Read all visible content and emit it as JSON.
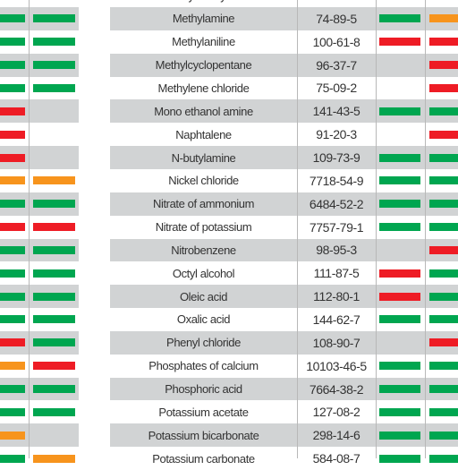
{
  "left_table": {
    "rows": [
      {
        "ratings": [
          null,
          null
        ]
      },
      {
        "ratings": [
          "#00a650",
          "#00a650"
        ]
      },
      {
        "ratings": [
          "#00a650",
          "#00a650"
        ]
      },
      {
        "ratings": [
          "#00a650",
          "#00a650"
        ]
      },
      {
        "ratings": [
          "#00a650",
          "#00a650"
        ]
      },
      {
        "ratings": [
          "#ee1c25",
          null
        ]
      },
      {
        "ratings": [
          "#ee1c25",
          null
        ]
      },
      {
        "ratings": [
          "#ee1c25",
          null
        ]
      },
      {
        "ratings": [
          "#f7941d",
          "#f7941d"
        ]
      },
      {
        "ratings": [
          "#00a650",
          "#00a650"
        ]
      },
      {
        "ratings": [
          "#ee1c25",
          "#ee1c25"
        ]
      },
      {
        "ratings": [
          "#00a650",
          "#00a650"
        ]
      },
      {
        "ratings": [
          "#00a650",
          "#00a650"
        ]
      },
      {
        "ratings": [
          "#00a650",
          "#00a650"
        ]
      },
      {
        "ratings": [
          "#00a650",
          "#00a650"
        ]
      },
      {
        "ratings": [
          "#ee1c25",
          "#00a650"
        ]
      },
      {
        "ratings": [
          "#f7941d",
          "#ee1c25"
        ]
      },
      {
        "ratings": [
          "#00a650",
          "#00a650"
        ]
      },
      {
        "ratings": [
          "#00a650",
          "#00a650"
        ]
      },
      {
        "ratings": [
          "#f7941d",
          null
        ]
      },
      {
        "ratings": [
          "#00a650",
          "#f7941d"
        ]
      }
    ]
  },
  "right_table": {
    "rows": [
      {
        "name": "Methyl salicylate",
        "cas": "",
        "ratings": [
          null,
          null
        ]
      },
      {
        "name": "Methylamine",
        "cas": "74-89-5",
        "ratings": [
          "#00a650",
          "#f7941d"
        ]
      },
      {
        "name": "Methylaniline",
        "cas": "100-61-8",
        "ratings": [
          "#ee1c25",
          "#ee1c25"
        ]
      },
      {
        "name": "Methylcyclopentane",
        "cas": "96-37-7",
        "ratings": [
          null,
          "#ee1c25"
        ]
      },
      {
        "name": "Methylene chloride",
        "cas": "75-09-2",
        "ratings": [
          null,
          "#ee1c25"
        ]
      },
      {
        "name": "Mono ethanol amine",
        "cas": "141-43-5",
        "ratings": [
          "#00a650",
          "#00a650"
        ]
      },
      {
        "name": "Naphtalene",
        "cas": "91-20-3",
        "ratings": [
          null,
          "#ee1c25"
        ]
      },
      {
        "name": "N-butylamine",
        "cas": "109-73-9",
        "ratings": [
          "#00a650",
          "#00a650"
        ]
      },
      {
        "name": "Nickel chloride",
        "cas": "7718-54-9",
        "ratings": [
          "#00a650",
          "#00a650"
        ]
      },
      {
        "name": "Nitrate of ammonium",
        "cas": "6484-52-2",
        "ratings": [
          "#00a650",
          "#00a650"
        ]
      },
      {
        "name": "Nitrate of potassium",
        "cas": "7757-79-1",
        "ratings": [
          "#00a650",
          "#00a650"
        ]
      },
      {
        "name": "Nitrobenzene",
        "cas": "98-95-3",
        "ratings": [
          null,
          "#ee1c25"
        ]
      },
      {
        "name": "Octyl alcohol",
        "cas": "111-87-5",
        "ratings": [
          "#ee1c25",
          "#00a650"
        ]
      },
      {
        "name": "Oleic acid",
        "cas": "112-80-1",
        "ratings": [
          "#ee1c25",
          "#00a650"
        ]
      },
      {
        "name": "Oxalic acid",
        "cas": "144-62-7",
        "ratings": [
          "#00a650",
          "#00a650"
        ]
      },
      {
        "name": "Phenyl chloride",
        "cas": "108-90-7",
        "ratings": [
          null,
          "#ee1c25"
        ]
      },
      {
        "name": "Phosphates of calcium",
        "cas": "10103-46-5",
        "ratings": [
          "#00a650",
          "#00a650"
        ]
      },
      {
        "name": "Phosphoric acid",
        "cas": "7664-38-2",
        "ratings": [
          "#00a650",
          "#00a650"
        ]
      },
      {
        "name": "Potassium acetate",
        "cas": "127-08-2",
        "ratings": [
          "#00a650",
          "#00a650"
        ]
      },
      {
        "name": "Potassium bicarbonate",
        "cas": "298-14-6",
        "ratings": [
          "#00a650",
          "#00a650"
        ]
      },
      {
        "name": "Potassium carbonate",
        "cas": "584-08-7",
        "ratings": [
          "#00a650",
          "#00a650"
        ]
      }
    ]
  }
}
